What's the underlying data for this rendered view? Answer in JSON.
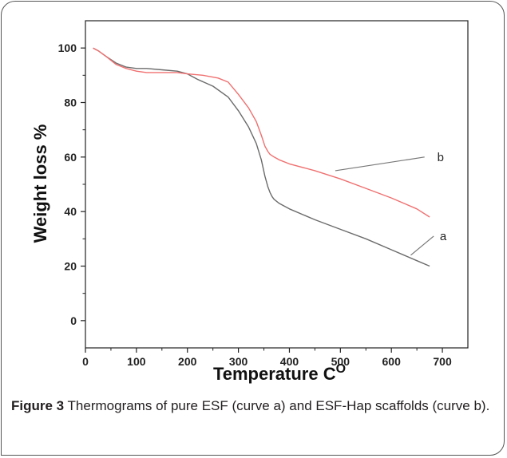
{
  "chart_data": {
    "type": "line",
    "xlabel": "Temperature C",
    "xlabel_sup": "O",
    "ylabel": "Weight loss %",
    "xlim": [
      0,
      750
    ],
    "ylim": [
      -10,
      110
    ],
    "xticks": [
      0,
      100,
      200,
      300,
      400,
      500,
      600,
      700
    ],
    "yticks": [
      0,
      20,
      40,
      60,
      80,
      100
    ],
    "grid": false,
    "series": [
      {
        "name": "a",
        "color": "#6b6b6b",
        "x": [
          15,
          25,
          40,
          60,
          80,
          100,
          120,
          150,
          180,
          200,
          220,
          250,
          280,
          300,
          320,
          335,
          345,
          352,
          358,
          362,
          366,
          370,
          380,
          400,
          450,
          500,
          550,
          600,
          650,
          675
        ],
        "y": [
          100,
          99,
          97,
          94.5,
          93,
          92.5,
          92.5,
          92,
          91.5,
          90.5,
          88.5,
          86,
          82,
          77,
          71,
          65,
          59,
          53,
          49,
          47,
          45.5,
          44.5,
          43,
          41,
          37,
          33.5,
          30,
          26,
          22,
          20
        ]
      },
      {
        "name": "b",
        "color": "#f07070",
        "x": [
          15,
          25,
          40,
          60,
          80,
          100,
          120,
          150,
          180,
          200,
          230,
          260,
          280,
          300,
          320,
          335,
          345,
          352,
          358,
          362,
          370,
          380,
          400,
          450,
          500,
          550,
          600,
          650,
          675
        ],
        "y": [
          100,
          99,
          97,
          94,
          92.5,
          91.5,
          91,
          91,
          91,
          90.5,
          90,
          89,
          87.5,
          83,
          78,
          73,
          68,
          64,
          62,
          61,
          60,
          59,
          57.5,
          55,
          52,
          48.5,
          45,
          41,
          38
        ]
      }
    ],
    "annotations": [
      {
        "text": "b",
        "x": 690,
        "y": 60,
        "line_from": [
          490,
          55
        ],
        "line_to": [
          665,
          60
        ]
      },
      {
        "text": "a",
        "x": 695,
        "y": 31,
        "line_from": [
          638,
          24
        ],
        "line_to": [
          683,
          31
        ]
      }
    ]
  },
  "caption": {
    "label": "Figure 3",
    "text": " Thermograms of pure ESF (curve a) and ESF-Hap scaffolds (curve b)."
  }
}
